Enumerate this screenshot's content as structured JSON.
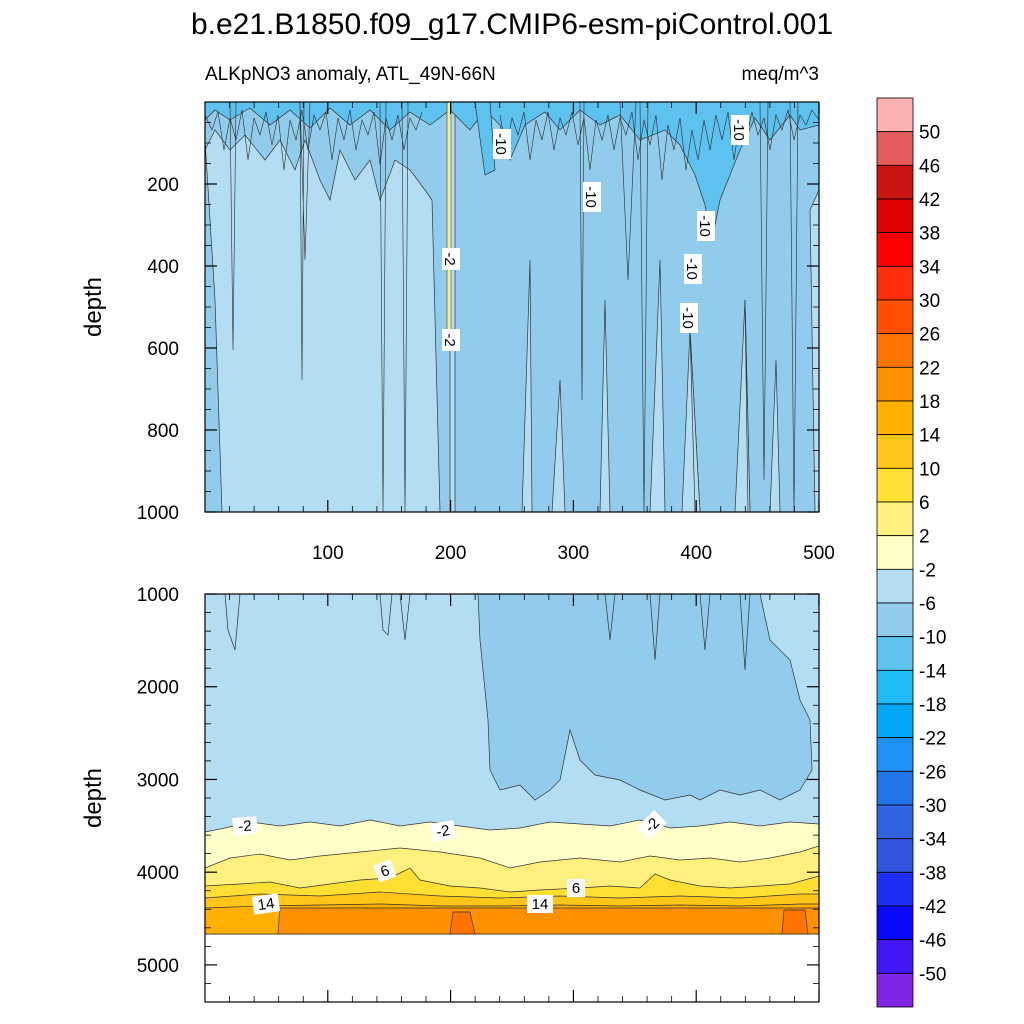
{
  "chart_data": [
    {
      "type": "contour",
      "title": "b.e21.B1850.f09_g17.CMIP6-esm-piControl.001",
      "subtitle_left": "ALKpNO3 anomaly, ATL_49N-66N",
      "subtitle_right": "meq/m^3",
      "ylabel": "depth",
      "xlim": [
        0,
        500
      ],
      "ylim": [
        1000,
        0
      ],
      "yticks": [
        "200",
        "400",
        "600",
        "800",
        "1000"
      ],
      "xticks": [
        "100",
        "200",
        "300",
        "400",
        "500"
      ],
      "contour_labels": [
        "-10",
        "-10",
        "-10",
        "-10",
        "-10",
        "-10",
        "-2",
        "-2"
      ]
    },
    {
      "type": "contour",
      "ylabel": "depth",
      "xlim": [
        0,
        500
      ],
      "ylim": [
        5400,
        1000
      ],
      "yticks": [
        "1000",
        "2000",
        "3000",
        "4000",
        "5000"
      ],
      "contour_labels": [
        "-2",
        "-2",
        "-2",
        "6",
        "6",
        "14",
        "14"
      ]
    }
  ],
  "colorbar": {
    "levels": [
      "50",
      "46",
      "42",
      "38",
      "34",
      "30",
      "26",
      "22",
      "18",
      "14",
      "10",
      "6",
      "2",
      "-2",
      "-6",
      "-10",
      "-14",
      "-18",
      "-22",
      "-26",
      "-30",
      "-34",
      "-38",
      "-42",
      "-46",
      "-50"
    ],
    "colors": [
      "#FFB1B1",
      "#E35B5B",
      "#CC1414",
      "#DE0000",
      "#FF0000",
      "#FF2D0A",
      "#FF5000",
      "#FF7300",
      "#FF9100",
      "#FFB000",
      "#FFC619",
      "#FFDF32",
      "#FFF07D",
      "#FFFFC8",
      "#B2DDF3",
      "#92CCEC",
      "#5DC2F0",
      "#20BBF7",
      "#01A8F6",
      "#1E90F8",
      "#2175EB",
      "#3163E5",
      "#3354DD",
      "#1B2FF5",
      "#0A08F8",
      "#4315F5",
      "#8226E6"
    ]
  }
}
